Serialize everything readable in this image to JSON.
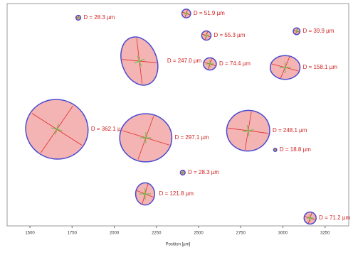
{
  "chart_data": {
    "type": "particles",
    "x_label": "Position [µm]",
    "xlim": [
      1365,
      3390
    ],
    "xticks": [
      1500,
      1750,
      2000,
      2250,
      2500,
      2750,
      3000,
      3250
    ],
    "x": [
      1787,
      2427,
      2546,
      3081,
      2149,
      2567,
      3013,
      1660,
      2187,
      2794,
      2954,
      2406,
      2183,
      3161
    ],
    "values": [
      28.3,
      51.9,
      55.3,
      39.9,
      247.0,
      74.4,
      158.1,
      362.1,
      297.1,
      248.1,
      18.8,
      28.3,
      121.8,
      71.2
    ],
    "value_labels": [
      "D = 28.3 µm",
      "D = 51.9 µm",
      "D = 55.3 µm",
      "D = 39.9 µm",
      "D = 247.0 µm",
      "D = 74.4 µm",
      "D = 158.1 µm",
      "D = 362.1 µm",
      "D = 297.1 µm",
      "D = 248.1 µm",
      "D = 18.8 µm",
      "D = 28.3 µm",
      "D = 121.8 µm",
      "D = 71.2 µm"
    ],
    "color": "#f4b4b4",
    "edge_color": "#4a4ad0",
    "label_color": "#d02020"
  }
}
